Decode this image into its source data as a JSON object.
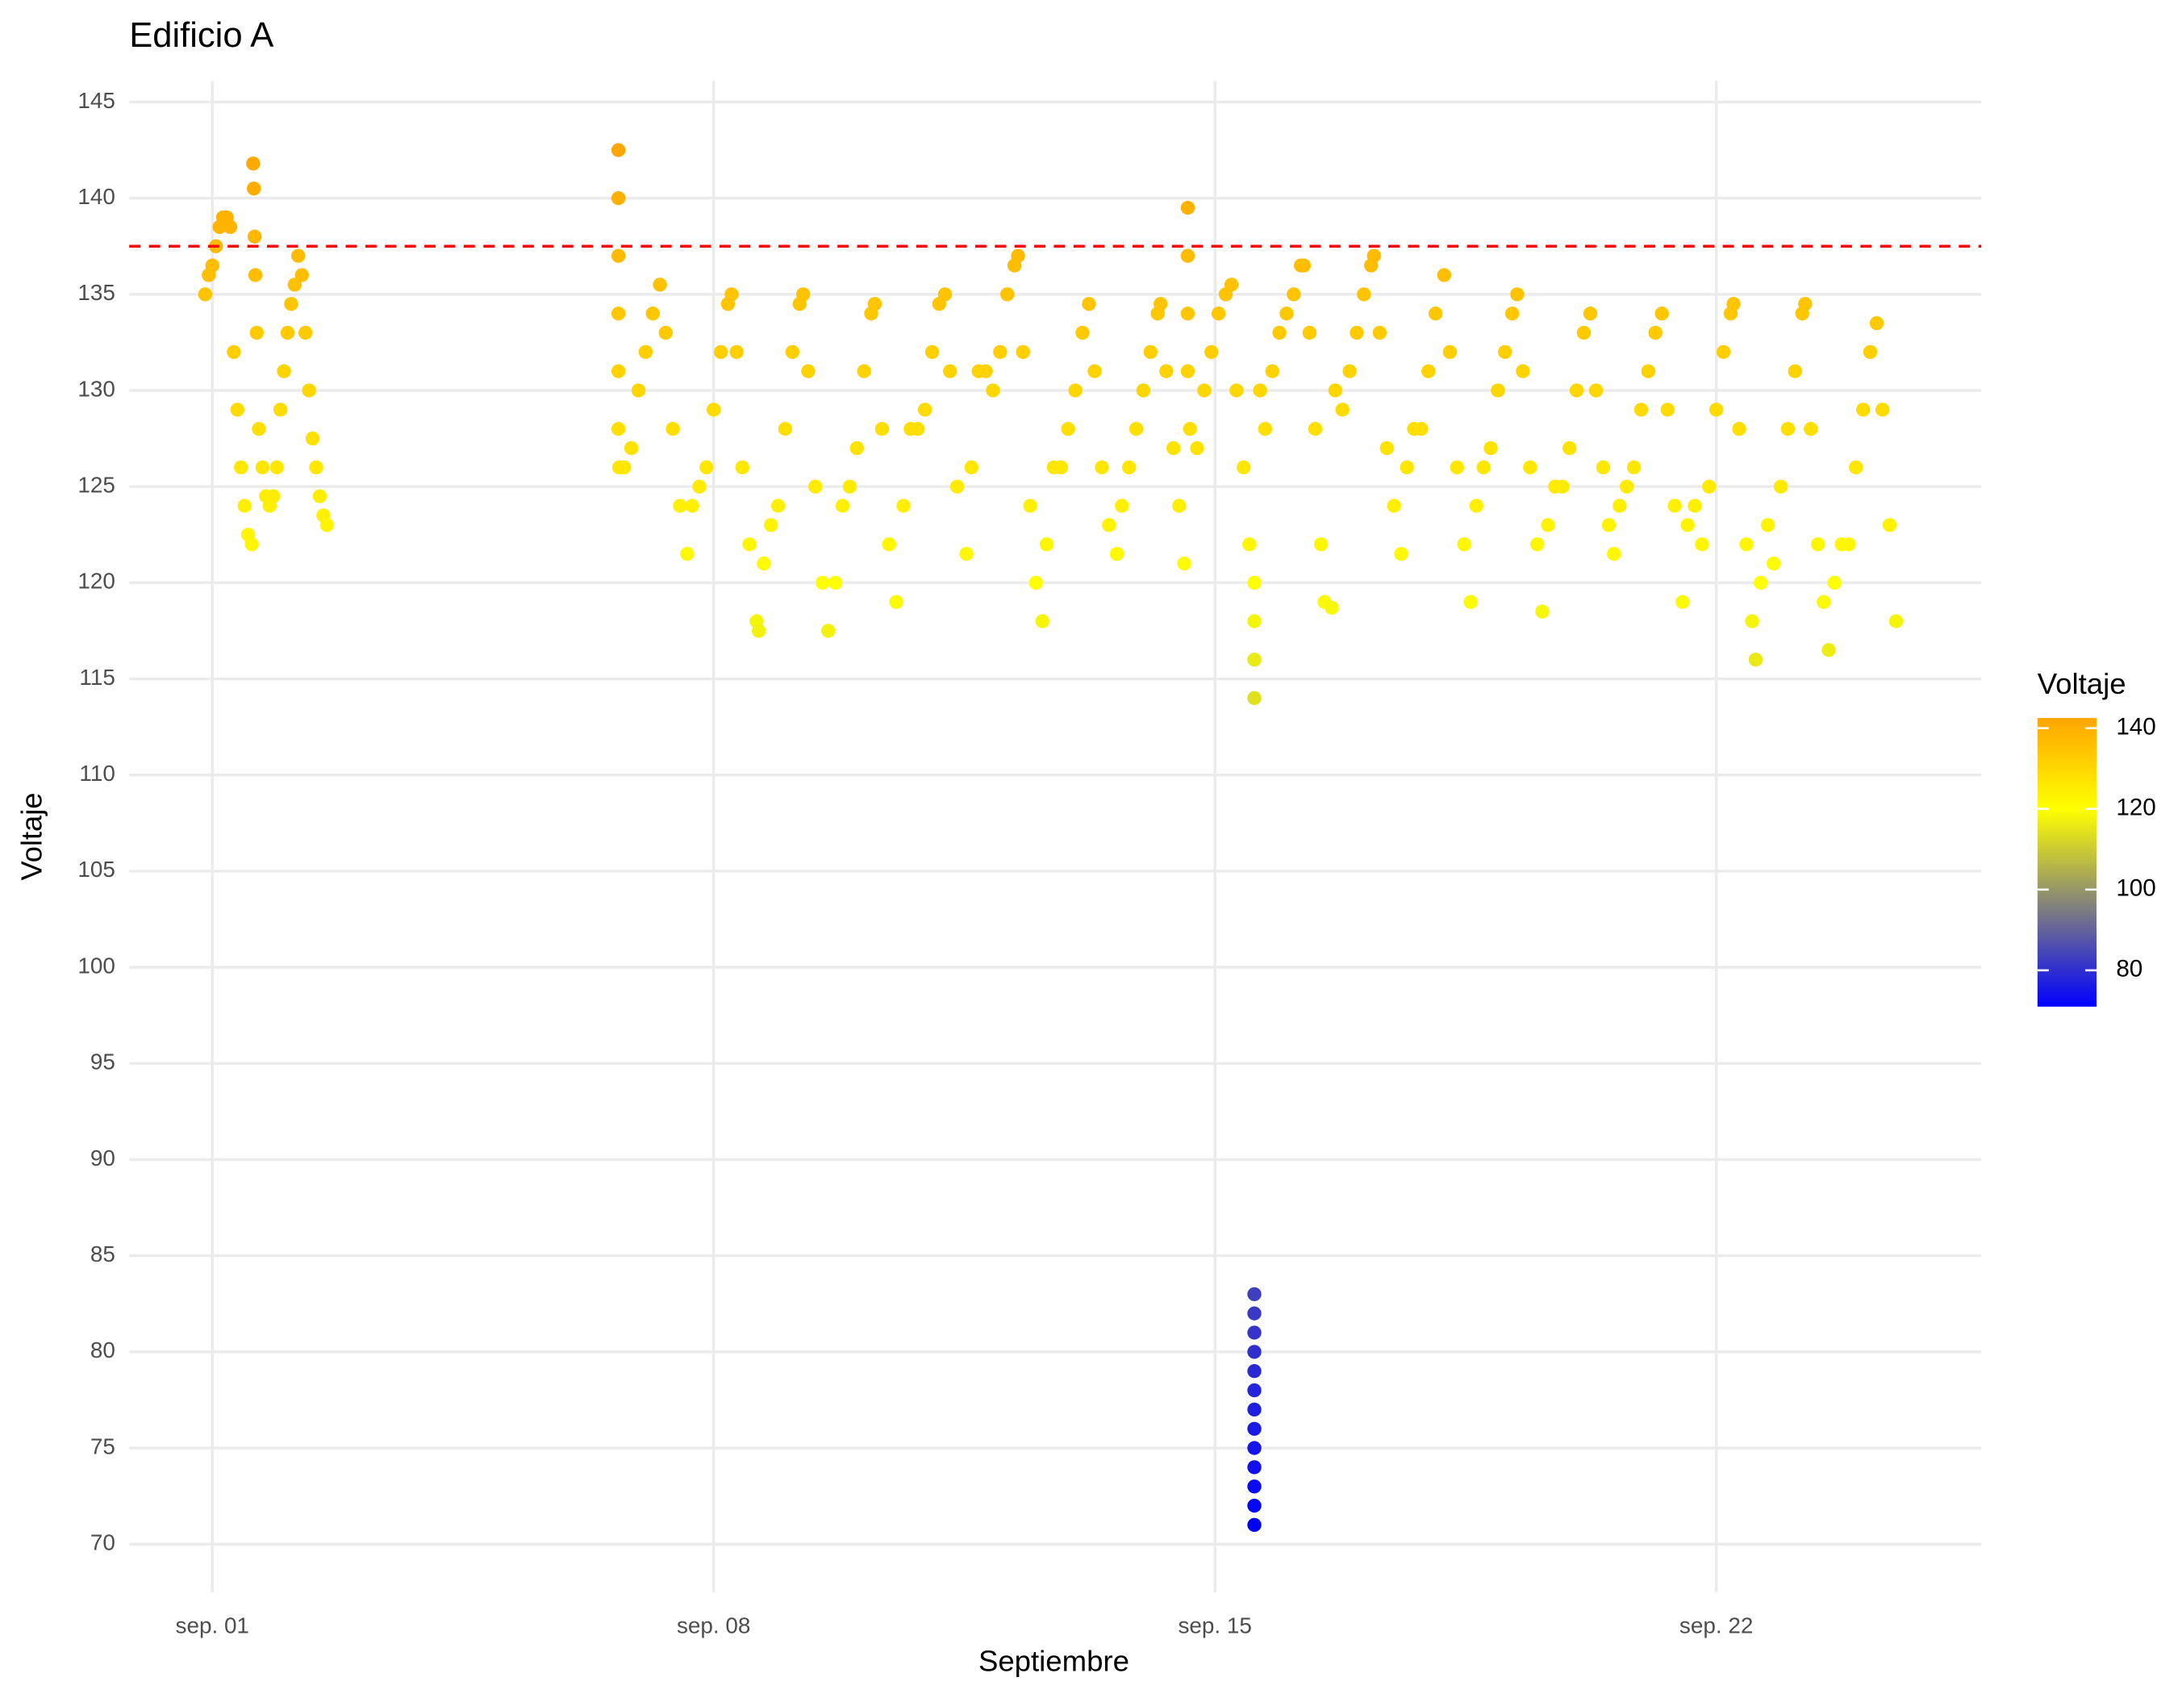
{
  "chart_data": {
    "type": "scatter",
    "title": "Edificio A",
    "x_label": "Septiembre",
    "y_label": "Voltaje",
    "xlim": [
      -0.16,
      25.7
    ],
    "ylim": [
      67.5,
      146.1
    ],
    "xticks": [
      {
        "value": 1,
        "label": "sep. 01"
      },
      {
        "value": 8,
        "label": "sep. 08"
      },
      {
        "value": 15,
        "label": "sep. 15"
      },
      {
        "value": 22,
        "label": "sep. 22"
      }
    ],
    "yticks": [
      70,
      75,
      80,
      85,
      90,
      95,
      100,
      105,
      110,
      115,
      120,
      125,
      130,
      135,
      140,
      145
    ],
    "grid": true,
    "reference_line": {
      "value": 137.5,
      "color": "#ff0000"
    },
    "color_scale": {
      "title": "Voltaje",
      "limits": [
        71,
        142.5
      ],
      "ticks": [
        80,
        100,
        120,
        140
      ],
      "stops": [
        {
          "value": 71,
          "color": "#0000ff"
        },
        {
          "value": 120,
          "color": "#ffff00"
        },
        {
          "value": 142.5,
          "color": "#ffa500"
        }
      ]
    },
    "x": [
      0.9,
      0.95,
      1.0,
      1.05,
      1.1,
      1.15,
      1.2,
      1.25,
      1.3,
      1.35,
      1.4,
      1.45,
      1.5,
      1.55,
      1.57,
      1.58,
      1.59,
      1.6,
      1.62,
      1.65,
      1.7,
      1.75,
      1.8,
      1.85,
      1.9,
      1.95,
      2.0,
      2.05,
      2.1,
      2.15,
      2.2,
      2.25,
      2.3,
      2.35,
      2.4,
      2.45,
      2.5,
      2.55,
      2.6,
      6.67,
      6.67,
      6.67,
      6.67,
      6.67,
      6.67,
      6.68,
      6.75,
      6.85,
      6.95,
      7.05,
      7.15,
      7.25,
      7.33,
      7.43,
      7.53,
      7.63,
      7.7,
      7.8,
      7.9,
      8.0,
      8.1,
      8.2,
      8.25,
      8.32,
      8.4,
      8.5,
      8.6,
      8.63,
      8.7,
      8.8,
      8.9,
      9.0,
      9.1,
      9.2,
      9.25,
      9.32,
      9.42,
      9.52,
      9.6,
      9.7,
      9.8,
      9.9,
      10.0,
      10.1,
      10.2,
      10.25,
      10.35,
      10.45,
      10.55,
      10.65,
      10.75,
      10.85,
      10.95,
      11.05,
      11.15,
      11.23,
      11.3,
      11.4,
      11.53,
      11.6,
      11.7,
      11.8,
      11.9,
      12.0,
      12.1,
      12.2,
      12.25,
      12.32,
      12.42,
      12.5,
      12.59,
      12.65,
      12.75,
      12.85,
      12.95,
      13.05,
      13.15,
      13.24,
      13.32,
      13.42,
      13.52,
      13.63,
      13.7,
      13.8,
      13.9,
      14.0,
      14.1,
      14.2,
      14.24,
      14.32,
      14.42,
      14.5,
      14.57,
      14.62,
      14.62,
      14.62,
      14.62,
      14.65,
      14.75,
      14.85,
      14.95,
      15.05,
      15.15,
      15.23,
      15.3,
      15.4,
      15.48,
      15.55,
      15.55,
      15.55,
      15.55,
      15.55,
      15.55,
      15.55,
      15.55,
      15.55,
      15.55,
      15.55,
      15.55,
      15.55,
      15.55,
      15.55,
      15.55,
      15.55,
      15.63,
      15.7,
      15.8,
      15.9,
      16.0,
      16.1,
      16.2,
      16.24,
      16.32,
      16.4,
      16.48,
      16.53,
      16.63,
      16.68,
      16.78,
      16.88,
      16.98,
      17.08,
      17.18,
      17.22,
      17.3,
      17.4,
      17.5,
      17.6,
      17.68,
      17.78,
      17.88,
      17.98,
      18.08,
      18.2,
      18.28,
      18.38,
      18.48,
      18.57,
      18.65,
      18.75,
      18.85,
      18.95,
      19.05,
      19.15,
      19.22,
      19.3,
      19.4,
      19.5,
      19.57,
      19.65,
      19.75,
      19.85,
      19.95,
      20.05,
      20.15,
      20.24,
      20.32,
      20.42,
      20.5,
      20.57,
      20.65,
      20.75,
      20.85,
      20.95,
      21.05,
      21.15,
      21.24,
      21.32,
      21.42,
      21.53,
      21.6,
      21.7,
      21.8,
      21.9,
      22.0,
      22.1,
      22.2,
      22.24,
      22.32,
      22.42,
      22.5,
      22.55,
      22.62,
      22.72,
      22.8,
      22.9,
      23.0,
      23.1,
      23.2,
      23.24,
      23.32,
      23.42,
      23.5,
      23.57,
      23.65,
      23.75,
      23.85,
      23.95,
      24.05,
      24.15,
      24.24,
      24.32,
      24.42,
      24.51
    ],
    "values": [
      135,
      136,
      136.5,
      137.5,
      138.5,
      139,
      139,
      138.5,
      132,
      129,
      126,
      124,
      122.5,
      122,
      141.8,
      140.5,
      138,
      136,
      133,
      128,
      126,
      124.5,
      124,
      124.5,
      126,
      129,
      131,
      133,
      134.5,
      135.5,
      137,
      136,
      133,
      130,
      127.5,
      126,
      124.5,
      123.5,
      123,
      142.5,
      140,
      137,
      134,
      131,
      128,
      126,
      126,
      127,
      130,
      132,
      134,
      135.5,
      133,
      128,
      124,
      121.5,
      124,
      125,
      126,
      129,
      132,
      134.5,
      135,
      132,
      126,
      122,
      118,
      117.5,
      121,
      123,
      124,
      128,
      132,
      134.5,
      135,
      131,
      125,
      120,
      117.5,
      120,
      124,
      125,
      127,
      131,
      134,
      134.5,
      128,
      122,
      119,
      124,
      128,
      128,
      129,
      132,
      134.5,
      135,
      131,
      125,
      121.5,
      126,
      131,
      131,
      130,
      132,
      135,
      136.5,
      137,
      132,
      124,
      120,
      118,
      122,
      126,
      126,
      128,
      130,
      133,
      134.5,
      131,
      126,
      123,
      121.5,
      124,
      126,
      128,
      130,
      132,
      134,
      134.5,
      131,
      127,
      124,
      121,
      139.5,
      137,
      134,
      131,
      128,
      127,
      130,
      132,
      134,
      135,
      135.5,
      130,
      126,
      122,
      120,
      118,
      116,
      114,
      83,
      82,
      81,
      80,
      79,
      78,
      77,
      76,
      75,
      74,
      73,
      72,
      71,
      130,
      128,
      131,
      133,
      134,
      135,
      136.5,
      136.5,
      133,
      128,
      122,
      119,
      118.7,
      130,
      129,
      131,
      133,
      135,
      136.5,
      137,
      133,
      127,
      124,
      121.5,
      126,
      128,
      128,
      131,
      134,
      136,
      132,
      126,
      122,
      119,
      124,
      126,
      127,
      130,
      132,
      134,
      135,
      131,
      126,
      122,
      118.5,
      123,
      125,
      125,
      127,
      130,
      133,
      134,
      130,
      126,
      123,
      121.5,
      124,
      125,
      126,
      129,
      131,
      133,
      134,
      129,
      124,
      119,
      123,
      124,
      122,
      125,
      129,
      132,
      134,
      134.5,
      128,
      122,
      118,
      116,
      120,
      123,
      121,
      125,
      128,
      131,
      134,
      134.5,
      128,
      122,
      119,
      116.5,
      120,
      122,
      122,
      126,
      129,
      132,
      133.5,
      129,
      123,
      118
    ]
  }
}
